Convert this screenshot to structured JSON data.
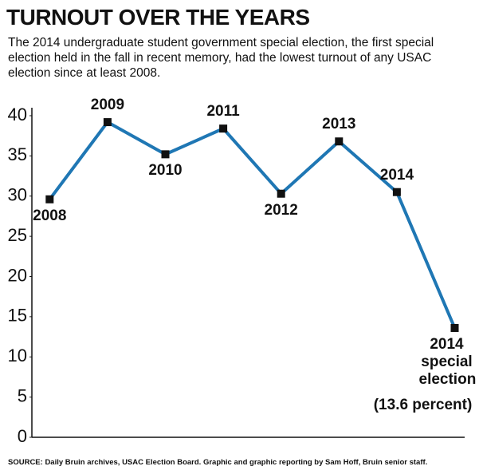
{
  "chart_data": {
    "type": "line",
    "title": "TURNOUT OVER THE YEARS",
    "subtitle": "The 2014 undergraduate student government special election, the first special election held in the fall in recent memory, had the lowest turnout of any USAC election since at least 2008.",
    "source": "SOURCE: Daily Bruin archives, USAC Election Board. Graphic and graphic reporting by Sam Hoff, Bruin senior staff.",
    "categories": [
      "2008",
      "2009",
      "2010",
      "2011",
      "2012",
      "2013",
      "2014",
      "2014 special election"
    ],
    "values": [
      29.6,
      39.2,
      35.2,
      38.4,
      30.3,
      36.8,
      30.5,
      13.6
    ],
    "value_labels": [
      null,
      null,
      null,
      null,
      null,
      null,
      null,
      "(13.6 percent)"
    ],
    "color": "#1f77b4",
    "ylim": [
      0,
      40
    ],
    "yticks": [
      0,
      5,
      10,
      15,
      20,
      25,
      30,
      35,
      40
    ],
    "grid": false
  }
}
